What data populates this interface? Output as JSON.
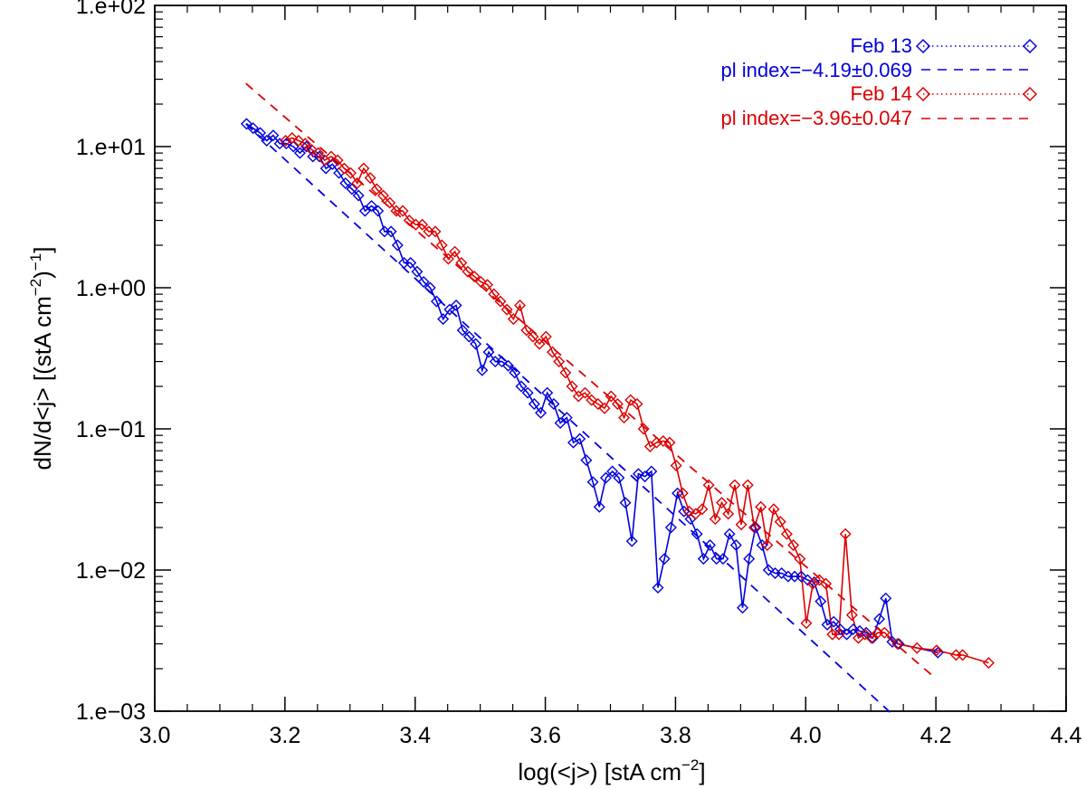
{
  "chart_data": {
    "type": "line",
    "title": "",
    "xlabel": "log(<j>) [stA cm",
    "xlabel_sup": "−2",
    "xlabel_tail": "]",
    "ylabel_main": "dN/d<j> [(stA cm",
    "ylabel_sup1": "−2",
    "ylabel_mid": ")",
    "ylabel_sup2": "−1",
    "ylabel_tail": "]",
    "x_scale": "linear",
    "y_scale": "log",
    "xlim": [
      3.0,
      4.4
    ],
    "ylim": [
      0.001,
      100
    ],
    "x_ticks": [
      3.0,
      3.2,
      3.4,
      3.6,
      3.8,
      4.0,
      4.2,
      4.4
    ],
    "x_tick_labels": [
      "3.0",
      "3.2",
      "3.4",
      "3.6",
      "3.8",
      "4.0",
      "4.2",
      "4.4"
    ],
    "y_ticks": [
      0.001,
      0.01,
      0.1,
      1,
      10,
      100
    ],
    "y_tick_labels": [
      "1.e−03",
      "1.e−02",
      "1.e−01",
      "1.e+00",
      "1.e+01",
      "1.e+02"
    ],
    "legend_position": "top-right",
    "series": [
      {
        "name": "Feb 13",
        "color": "#0000dd",
        "marker": "diamond",
        "fit_label": "pl index=−4.19±0.069",
        "fit_line": {
          "x": [
            3.14,
            4.13
          ],
          "y": [
            14.5,
            0.00098
          ]
        },
        "x": [
          3.141,
          3.151,
          3.162,
          3.172,
          3.182,
          3.192,
          3.202,
          3.213,
          3.223,
          3.233,
          3.243,
          3.253,
          3.263,
          3.273,
          3.283,
          3.293,
          3.303,
          3.313,
          3.323,
          3.333,
          3.343,
          3.353,
          3.363,
          3.373,
          3.383,
          3.393,
          3.403,
          3.413,
          3.423,
          3.433,
          3.443,
          3.453,
          3.463,
          3.473,
          3.483,
          3.493,
          3.503,
          3.513,
          3.523,
          3.533,
          3.543,
          3.553,
          3.563,
          3.573,
          3.583,
          3.593,
          3.603,
          3.613,
          3.623,
          3.633,
          3.643,
          3.653,
          3.663,
          3.673,
          3.683,
          3.693,
          3.703,
          3.713,
          3.723,
          3.733,
          3.743,
          3.753,
          3.763,
          3.773,
          3.783,
          3.793,
          3.803,
          3.813,
          3.823,
          3.833,
          3.843,
          3.853,
          3.863,
          3.873,
          3.883,
          3.893,
          3.903,
          3.913,
          3.923,
          3.933,
          3.943,
          3.953,
          3.963,
          3.973,
          3.983,
          3.993,
          4.003,
          4.013,
          4.023,
          4.033,
          4.043,
          4.053,
          4.063,
          4.073,
          4.083,
          4.093,
          4.103,
          4.113,
          4.123,
          4.133,
          4.143,
          4.203
        ],
        "y": [
          14.5,
          13.5,
          12.5,
          11.0,
          12.0,
          10.5,
          10.5,
          10.0,
          9.0,
          10.0,
          8.5,
          8.5,
          7.0,
          7.5,
          6.5,
          5.5,
          5.0,
          4.5,
          3.5,
          3.8,
          3.5,
          2.5,
          2.5,
          2.0,
          1.5,
          1.5,
          1.3,
          1.1,
          1.0,
          0.8,
          0.6,
          0.7,
          0.75,
          0.5,
          0.45,
          0.4,
          0.26,
          0.35,
          0.3,
          0.3,
          0.28,
          0.25,
          0.2,
          0.18,
          0.15,
          0.13,
          0.18,
          0.15,
          0.11,
          0.12,
          0.08,
          0.085,
          0.06,
          0.042,
          0.028,
          0.045,
          0.05,
          0.045,
          0.03,
          0.016,
          0.048,
          0.046,
          0.05,
          0.0075,
          0.012,
          0.02,
          0.035,
          0.026,
          0.023,
          0.018,
          0.012,
          0.015,
          0.012,
          0.012,
          0.018,
          0.015,
          0.0054,
          0.012,
          0.02,
          0.015,
          0.01,
          0.0095,
          0.0095,
          0.009,
          0.009,
          0.009,
          0.0085,
          0.0082,
          0.006,
          0.0041,
          0.0043,
          0.0038,
          0.0035,
          0.0038,
          0.0037,
          0.0036,
          0.0033,
          0.0045,
          0.0063,
          0.0031,
          0.003,
          0.0026
        ]
      },
      {
        "name": "Feb 14",
        "color": "#dd0000",
        "marker": "diamond",
        "fit_label": "pl index=−3.96±0.047",
        "fit_line": {
          "x": [
            3.14,
            4.2
          ],
          "y": [
            28.0,
            0.0017
          ]
        },
        "x": [
          3.201,
          3.211,
          3.221,
          3.231,
          3.241,
          3.251,
          3.261,
          3.271,
          3.281,
          3.291,
          3.301,
          3.311,
          3.321,
          3.331,
          3.341,
          3.351,
          3.361,
          3.371,
          3.381,
          3.391,
          3.401,
          3.411,
          3.421,
          3.431,
          3.441,
          3.451,
          3.461,
          3.471,
          3.481,
          3.491,
          3.501,
          3.511,
          3.521,
          3.531,
          3.541,
          3.551,
          3.561,
          3.571,
          3.581,
          3.591,
          3.601,
          3.611,
          3.621,
          3.631,
          3.641,
          3.651,
          3.661,
          3.671,
          3.681,
          3.691,
          3.701,
          3.711,
          3.721,
          3.731,
          3.741,
          3.751,
          3.761,
          3.771,
          3.781,
          3.791,
          3.801,
          3.811,
          3.821,
          3.831,
          3.841,
          3.851,
          3.861,
          3.871,
          3.881,
          3.891,
          3.901,
          3.911,
          3.921,
          3.931,
          3.941,
          3.951,
          3.961,
          3.971,
          3.981,
          3.991,
          4.001,
          4.011,
          4.021,
          4.031,
          4.041,
          4.051,
          4.061,
          4.071,
          4.081,
          4.091,
          4.101,
          4.111,
          4.121,
          4.141,
          4.171,
          4.201,
          4.231,
          4.241,
          4.281
        ],
        "y": [
          11.0,
          11.5,
          11.0,
          10.5,
          9.5,
          9.0,
          8.0,
          8.5,
          8.0,
          7.0,
          6.5,
          5.5,
          7.0,
          6.0,
          5.0,
          4.5,
          4.0,
          3.5,
          3.5,
          3.0,
          2.8,
          2.8,
          2.5,
          2.5,
          2.0,
          1.6,
          1.8,
          1.5,
          1.3,
          1.2,
          1.1,
          1.05,
          0.9,
          0.8,
          0.7,
          0.6,
          0.75,
          0.5,
          0.45,
          0.4,
          0.45,
          0.35,
          0.3,
          0.25,
          0.2,
          0.17,
          0.18,
          0.16,
          0.15,
          0.14,
          0.17,
          0.15,
          0.12,
          0.16,
          0.15,
          0.1,
          0.075,
          0.08,
          0.082,
          0.08,
          0.055,
          0.035,
          0.026,
          0.025,
          0.027,
          0.04,
          0.023,
          0.03,
          0.025,
          0.04,
          0.021,
          0.04,
          0.02,
          0.028,
          0.015,
          0.027,
          0.022,
          0.018,
          0.015,
          0.012,
          0.0042,
          0.008,
          0.0085,
          0.008,
          0.0035,
          0.0035,
          0.018,
          0.0048,
          0.0033,
          0.0035,
          0.0033,
          0.0036,
          0.0036,
          0.003,
          0.0028,
          0.0027,
          0.0025,
          0.0025,
          0.0022
        ]
      }
    ]
  }
}
